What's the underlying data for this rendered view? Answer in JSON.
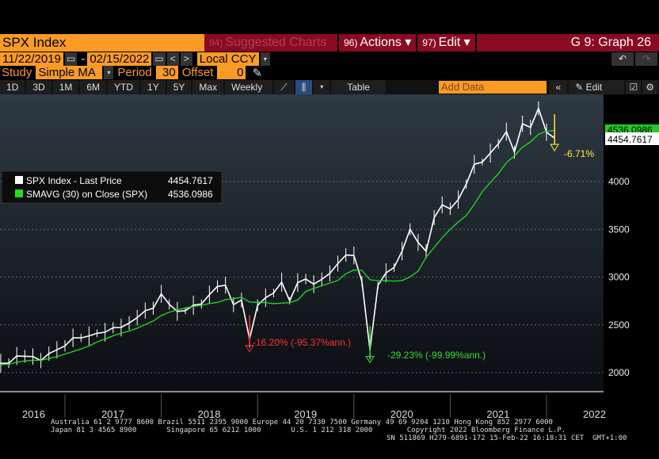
{
  "header": {
    "ticker": "SPX Index",
    "suggested": {
      "num": "94)",
      "label": "Suggested Charts"
    },
    "actions": {
      "num": "96)",
      "label": "Actions ▾"
    },
    "edit": {
      "num": "97)",
      "label": "Edit ▾"
    },
    "graph_title": "G 9: Graph 26"
  },
  "dates": {
    "start": "11/22/2019",
    "sep": "-",
    "end": "02/15/2022",
    "currency": "Local CCY"
  },
  "study": {
    "label": "Study",
    "value": "Simple MA",
    "period_label": "Period",
    "period": "30",
    "offset_label": "Offset",
    "offset": "0"
  },
  "toolbar": {
    "ranges": [
      "1D",
      "3D",
      "1M",
      "6M",
      "YTD",
      "1Y",
      "5Y",
      "Max"
    ],
    "frequency": "Weekly ▼",
    "table": "Table",
    "add_data_placeholder": "Add Data",
    "collapse": "«",
    "edit_chart": "✎ Edit Chart"
  },
  "legend": {
    "items": [
      {
        "label": "SPX Index - Last Price",
        "value": "4454.7617",
        "color": "#ffffff"
      },
      {
        "label": "SMAVG (30)  on Close (SPX)",
        "value": "4536.0986",
        "color": "#22dd22"
      }
    ]
  },
  "chart_data": {
    "type": "line",
    "title": "SPX Index",
    "frequency": "Weekly",
    "x_labels": [
      "2016",
      "2017",
      "2018",
      "2019",
      "2020",
      "2021",
      "2022"
    ],
    "y_ticks": [
      2000,
      2500,
      3000,
      3500,
      4000
    ],
    "ylim": [
      1900,
      4700
    ],
    "series": [
      {
        "name": "SPX Index - Last Price",
        "color": "#ffffff",
        "start": "2016-04",
        "step": "month",
        "values": [
          2065,
          2097,
          2099,
          2174,
          2171,
          2168,
          2126,
          2199,
          2239,
          2279,
          2364,
          2363,
          2384,
          2412,
          2423,
          2470,
          2472,
          2519,
          2575,
          2648,
          2674,
          2824,
          2714,
          2641,
          2648,
          2705,
          2718,
          2816,
          2902,
          2914,
          2711,
          2760,
          2351,
          2704,
          2784,
          2834,
          2946,
          2752,
          2942,
          2980,
          2926,
          2977,
          3038,
          3141,
          3231,
          3226,
          2954,
          2237,
          2912,
          3044,
          3100,
          3271,
          3500,
          3363,
          3270,
          3622,
          3756,
          3714,
          3811,
          3973,
          4181,
          4204,
          4298,
          4395,
          4523,
          4308,
          4605,
          4567,
          4766,
          4516,
          4455
        ]
      },
      {
        "name": "SMAVG (30) on Close (SPX)",
        "color": "#22dd22",
        "window_months": 7
      }
    ],
    "last_price": "4454.7617",
    "ma_last": "4536.0986",
    "annotations": [
      {
        "text": "-16.20% (-95.37%ann.)",
        "color": "#ff3030",
        "at": "2018-12"
      },
      {
        "text": "-29.23% (-99.99%ann.)",
        "color": "#33dd33",
        "at": "2020-03"
      },
      {
        "text": "-6.71%",
        "color": "#ffee33",
        "at": "2022-02"
      }
    ]
  },
  "footer": {
    "line1": "Australia 61 2 9777 8600 Brazil 5511 2395 9000 Europe 44 20 7330 7500 Germany 49 69 9204 1210 Hong Kong 852 2977 6000",
    "line2": "Japan 81 3 4565 8900       Singapore 65 6212 1000       U.S. 1 212 318 2000        Copyright 2022 Bloomberg Finance L.P.",
    "line3": "SN 511869 H279-6891-172 15-Feb-22 16:18:31 CET  GMT+1:00"
  }
}
